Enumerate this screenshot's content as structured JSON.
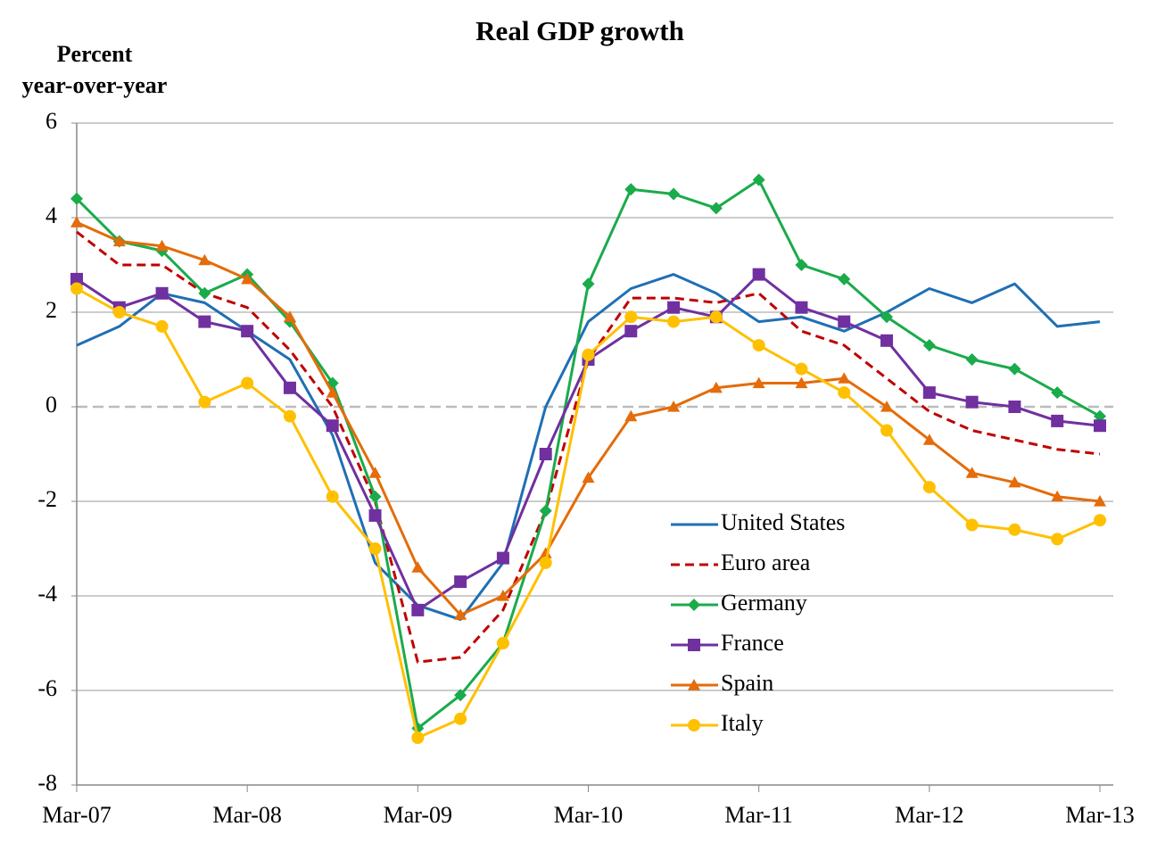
{
  "chart_data": {
    "type": "line",
    "title": "Real GDP growth",
    "y_label": [
      "Percent",
      "year-over-year"
    ],
    "categories": [
      "Mar-07",
      null,
      null,
      null,
      "Mar-08",
      null,
      null,
      null,
      "Mar-09",
      null,
      null,
      null,
      "Mar-10",
      null,
      null,
      null,
      "Mar-11",
      null,
      null,
      null,
      "Mar-12",
      null,
      null,
      null,
      "Mar-13"
    ],
    "ylim": [
      -8,
      6
    ],
    "yticks": [
      -8,
      -6,
      -4,
      -2,
      0,
      2,
      4,
      6
    ],
    "grid": true,
    "zero_line": "dashed",
    "legend": "inside-center-right",
    "series": [
      {
        "name": "United States",
        "color": "#1f6fb4",
        "marker": "none",
        "dash": false,
        "values": [
          1.3,
          1.7,
          2.4,
          2.2,
          1.6,
          1.0,
          -0.6,
          -3.3,
          -4.2,
          -4.5,
          -3.3,
          0.0,
          1.8,
          2.5,
          2.8,
          2.4,
          1.8,
          1.9,
          1.6,
          2.0,
          2.5,
          2.2,
          2.6,
          1.7,
          1.8
        ]
      },
      {
        "name": "Euro area",
        "color": "#c00000",
        "marker": "none",
        "dash": true,
        "values": [
          3.7,
          3.0,
          3.0,
          2.4,
          2.1,
          1.2,
          0.0,
          -2.0,
          -5.4,
          -5.3,
          -4.3,
          -2.2,
          1.0,
          2.3,
          2.3,
          2.2,
          2.4,
          1.6,
          1.3,
          0.6,
          -0.1,
          -0.5,
          -0.7,
          -0.9,
          -1.0
        ]
      },
      {
        "name": "Germany",
        "color": "#1aab4b",
        "marker": "diamond",
        "dash": false,
        "values": [
          4.4,
          3.5,
          3.3,
          2.4,
          2.8,
          1.8,
          0.5,
          -1.9,
          -6.8,
          -6.1,
          -5.0,
          -2.2,
          2.6,
          4.6,
          4.5,
          4.2,
          4.8,
          3.0,
          2.7,
          1.9,
          1.3,
          1.0,
          0.8,
          0.3,
          -0.2
        ]
      },
      {
        "name": "France",
        "color": "#7030a0",
        "marker": "square",
        "dash": false,
        "values": [
          2.7,
          2.1,
          2.4,
          1.8,
          1.6,
          0.4,
          -0.4,
          -2.3,
          -4.3,
          -3.7,
          -3.2,
          -1.0,
          1.0,
          1.6,
          2.1,
          1.9,
          2.8,
          2.1,
          1.8,
          1.4,
          0.3,
          0.1,
          0.0,
          -0.3,
          -0.4
        ]
      },
      {
        "name": "Spain",
        "color": "#e46c0a",
        "marker": "triangle",
        "dash": false,
        "values": [
          3.9,
          3.5,
          3.4,
          3.1,
          2.7,
          1.9,
          0.3,
          -1.4,
          -3.4,
          -4.4,
          -4.0,
          -3.1,
          -1.5,
          -0.2,
          0.0,
          0.4,
          0.5,
          0.5,
          0.6,
          0.0,
          -0.7,
          -1.4,
          -1.6,
          -1.9,
          -2.0
        ]
      },
      {
        "name": "Italy",
        "color": "#ffc000",
        "marker": "circle",
        "dash": false,
        "values": [
          2.5,
          2.0,
          1.7,
          0.1,
          0.5,
          -0.2,
          -1.9,
          -3.0,
          -7.0,
          -6.6,
          -5.0,
          -3.3,
          1.1,
          1.9,
          1.8,
          1.9,
          1.3,
          0.8,
          0.3,
          -0.5,
          -1.7,
          -2.5,
          -2.6,
          -2.8,
          -2.4
        ]
      }
    ]
  }
}
